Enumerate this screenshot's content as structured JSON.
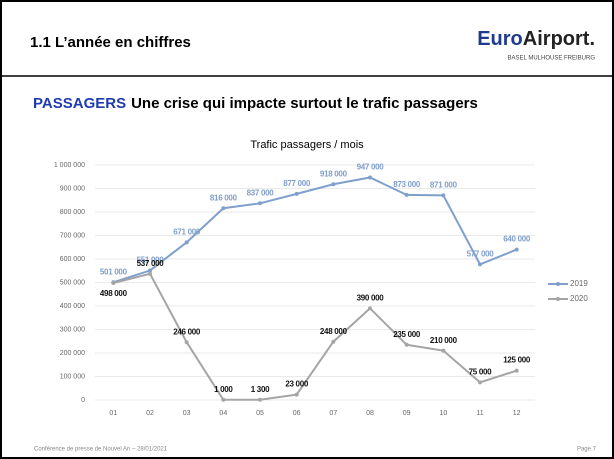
{
  "header": {
    "title": "1.1 L’année en chiffres",
    "logo": [
      "Euro",
      "Airport."
    ],
    "logo_subtitle": "BASEL  MULHOUSE  FREIBURG"
  },
  "headline": {
    "highlight": "PASSAGERS",
    "text": "Une crise qui impacte surtout le trafic passagers"
  },
  "chart_data": {
    "type": "line",
    "title": "Trafic passagers / mois",
    "categories": [
      "01",
      "02",
      "03",
      "04",
      "05",
      "06",
      "07",
      "08",
      "09",
      "10",
      "11",
      "12"
    ],
    "series": [
      {
        "name": "2019",
        "color": "#7f9fcc",
        "values": [
          501000,
          551000,
          671000,
          816000,
          837000,
          877000,
          918000,
          947000,
          873000,
          871000,
          577000,
          640000
        ],
        "value_labels": [
          "501 000",
          "551 000",
          "671 000",
          "816 000",
          "837 000",
          "877 000",
          "918 000",
          "947 000",
          "873 000",
          "871 000",
          "577 000",
          "640 000"
        ]
      },
      {
        "name": "2020",
        "color": "#a5a5a5",
        "values": [
          498000,
          537000,
          246000,
          1000,
          1300,
          23000,
          248000,
          390000,
          235000,
          210000,
          75000,
          125000
        ],
        "value_labels": [
          "498 000",
          "537 000",
          "246 000",
          "1 000",
          "1 300",
          "23 000",
          "248 000",
          "390 000",
          "235 000",
          "210 000",
          "75 000",
          "125 000"
        ]
      }
    ],
    "ylim": [
      0,
      1000000
    ],
    "yticks": [
      0,
      {
        "value": 100000,
        "label": "100 000"
      },
      {
        "value": 200000,
        "label": "200 000"
      },
      {
        "value": 300000,
        "label": "300 000"
      },
      {
        "value": 400000,
        "label": "400 000"
      },
      {
        "value": 500000,
        "label": "500 000"
      },
      {
        "value": 600000,
        "label": "600 000"
      },
      {
        "value": 700000,
        "label": "700 000"
      },
      {
        "value": 800000,
        "label": "800 000"
      },
      {
        "value": 900000,
        "label": "900 000"
      },
      {
        "value": 1000000,
        "label": "1 000 000"
      }
    ],
    "grid": true,
    "legend": "right"
  },
  "footer": {
    "text": "Conférence de presse de Nouvel An – 28/01/2021",
    "page": "Page 7"
  }
}
